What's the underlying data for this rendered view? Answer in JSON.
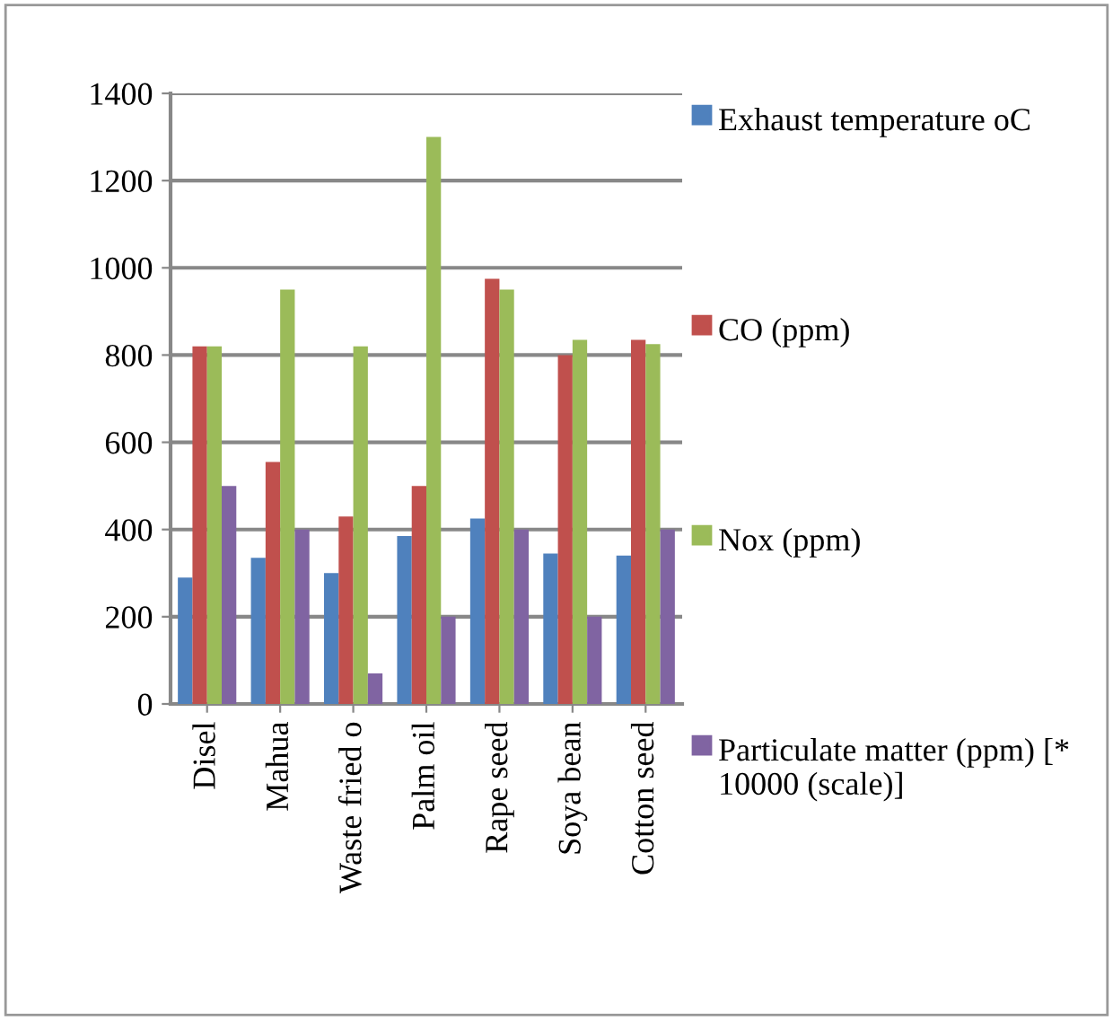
{
  "chart_data": {
    "type": "bar",
    "categories": [
      "Disel",
      "Mahua",
      "Waste fried o",
      "Palm oil",
      "Rape seed",
      "Soya bean",
      "Cotton seed"
    ],
    "series": [
      {
        "name": "Exhaust temperature oC",
        "color": "#4f81bd",
        "values": [
          290,
          335,
          300,
          385,
          425,
          345,
          340
        ]
      },
      {
        "name": "CO (ppm)",
        "color": "#c0504d",
        "values": [
          820,
          555,
          430,
          500,
          975,
          800,
          835
        ]
      },
      {
        "name": "Nox (ppm)",
        "color": "#9bbb59",
        "values": [
          820,
          950,
          820,
          1300,
          950,
          835,
          825
        ]
      },
      {
        "name": "Particulate matter (ppm) [* 10000 (scale)]",
        "color": "#8064a2",
        "values": [
          500,
          400,
          70,
          200,
          400,
          200,
          400
        ]
      }
    ],
    "ylim": [
      0,
      1400
    ],
    "yticks": [
      0,
      200,
      400,
      600,
      800,
      1000,
      1200,
      1400
    ],
    "grid": "y",
    "legend": "right"
  }
}
